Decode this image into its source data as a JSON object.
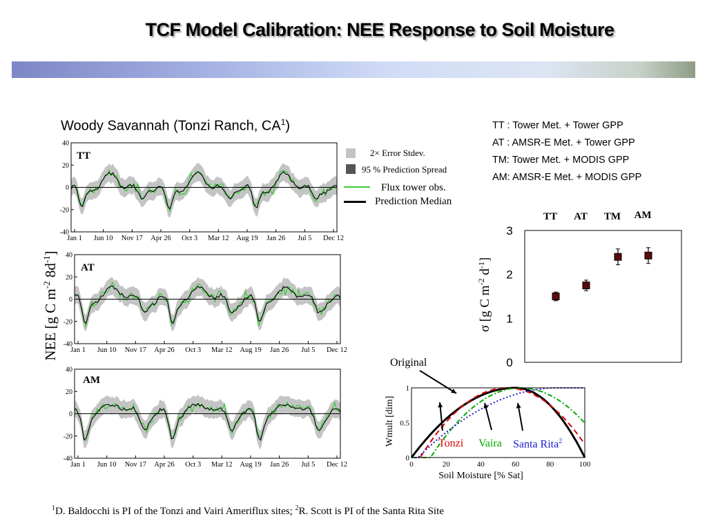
{
  "slide_title": "TCF Model Calibration: NEE Response to Soil Moisture",
  "subtitle_text": "Woody Savannah (Tonzi Ranch, CA",
  "subtitle_sup": "1",
  "config_legend": [
    "TT : Tower Met. + Tower GPP",
    "AT : AMSR-E Met. + Tower GPP",
    "TM: Tower Met. + MODIS GPP",
    "AM: AMSR-E Met. + MODIS GPP"
  ],
  "series_legend": {
    "error": "2× Error Stdev.",
    "spread": "95 % Prediction Spread",
    "obs": "Flux tower obs.",
    "median": "Prediction Median"
  },
  "nee_ylabel": {
    "main": "NEE [g C m",
    "sup1": "-2",
    "mid": " 8d",
    "sup2": "-1",
    "end": "]"
  },
  "sigma_ylabel": {
    "main": "σ [g C m",
    "sup1": "-2",
    "mid": " d",
    "sup2": "-1",
    "end": "]"
  },
  "footnote": {
    "sup1": "1",
    "t1": "D. Baldocchi  is PI of the Tonzi and Vairi  Ameriflux sites; ",
    "sup2": "2",
    "t2": "R. Scott is PI of the Santa Rita Site"
  },
  "annotations": {
    "original": "Original",
    "tonzi": "Tonzi",
    "vaira": "Vaira",
    "santa_rita": "Santa Rita",
    "santa_rita_sup": "2"
  },
  "colors": {
    "obs": "#33cc33",
    "median": "#000000",
    "band": "#c4c4c4",
    "tonzi": "#dd0000",
    "vaira": "#00aa00",
    "santa_rita": "#1a1acc"
  },
  "chart_data": [
    {
      "type": "line",
      "panel": "TT",
      "x_tick_labels": [
        "Jan 1",
        "Jun 10",
        "Nov 17",
        "Apr 26",
        "Oct 3",
        "Mar 12",
        "Aug 19",
        "Jan 26",
        "Jul 5",
        "Dec 12"
      ],
      "y_ticks": [
        "40",
        "20",
        "0",
        "-20",
        "-40"
      ],
      "ylim": [
        -40,
        40
      ],
      "series": [
        {
          "name": "Flux tower obs."
        },
        {
          "name": "Prediction Median"
        },
        {
          "name": "95 % Prediction Spread"
        }
      ]
    },
    {
      "type": "line",
      "panel": "AT",
      "x_tick_labels": [
        "Jan 1",
        "Jun 10",
        "Nov 17",
        "Apr 26",
        "Oct 3",
        "Mar 12",
        "Aug 19",
        "Jan 26",
        "Jul 5",
        "Dec 12"
      ],
      "y_ticks": [
        "40",
        "20",
        "0",
        "-20",
        "-40"
      ],
      "ylim": [
        -40,
        40
      ],
      "series": [
        {
          "name": "Flux tower obs."
        },
        {
          "name": "Prediction Median"
        },
        {
          "name": "95 % Prediction Spread"
        }
      ]
    },
    {
      "type": "line",
      "panel": "AM",
      "x_tick_labels": [
        "Jan 1",
        "Jun 10",
        "Nov 17",
        "Apr 26",
        "Oct 3",
        "Mar 12",
        "Aug 19",
        "Jan 26",
        "Jul 5",
        "Dec 12"
      ],
      "y_ticks": [
        "40",
        "20",
        "0",
        "-20",
        "-40"
      ],
      "ylim": [
        -40,
        40
      ],
      "series": [
        {
          "name": "Flux tower obs."
        },
        {
          "name": "Prediction Median"
        },
        {
          "name": "95 % Prediction Spread"
        }
      ]
    },
    {
      "type": "scatter",
      "panel": "sigma",
      "categories": [
        "TT",
        "AT",
        "TM",
        "AM"
      ],
      "values": [
        1.5,
        1.75,
        2.4,
        2.43
      ],
      "error": [
        0.1,
        0.12,
        0.18,
        0.18
      ],
      "y_ticks": [
        "3",
        "2",
        "1",
        "0"
      ],
      "ylim": [
        0,
        3
      ]
    },
    {
      "type": "line",
      "panel": "wmult",
      "xlabel": "Soil Moisture [% Sat]",
      "ylabel": "Wmult [dim]",
      "x_ticks": [
        "0",
        "20",
        "40",
        "60",
        "80",
        "100"
      ],
      "y_ticks": [
        "1",
        "0.5",
        "0"
      ],
      "xlim": [
        0,
        100
      ],
      "ylim": [
        0,
        1
      ],
      "series": [
        {
          "name": "Original",
          "peak_x": 60,
          "width": 60
        },
        {
          "name": "Tonzi",
          "peak_x": 55,
          "width": 50
        },
        {
          "name": "Vaira",
          "peak_x": 63,
          "width": 52
        },
        {
          "name": "Santa Rita",
          "peak_x": 85,
          "width": 75
        }
      ]
    }
  ]
}
